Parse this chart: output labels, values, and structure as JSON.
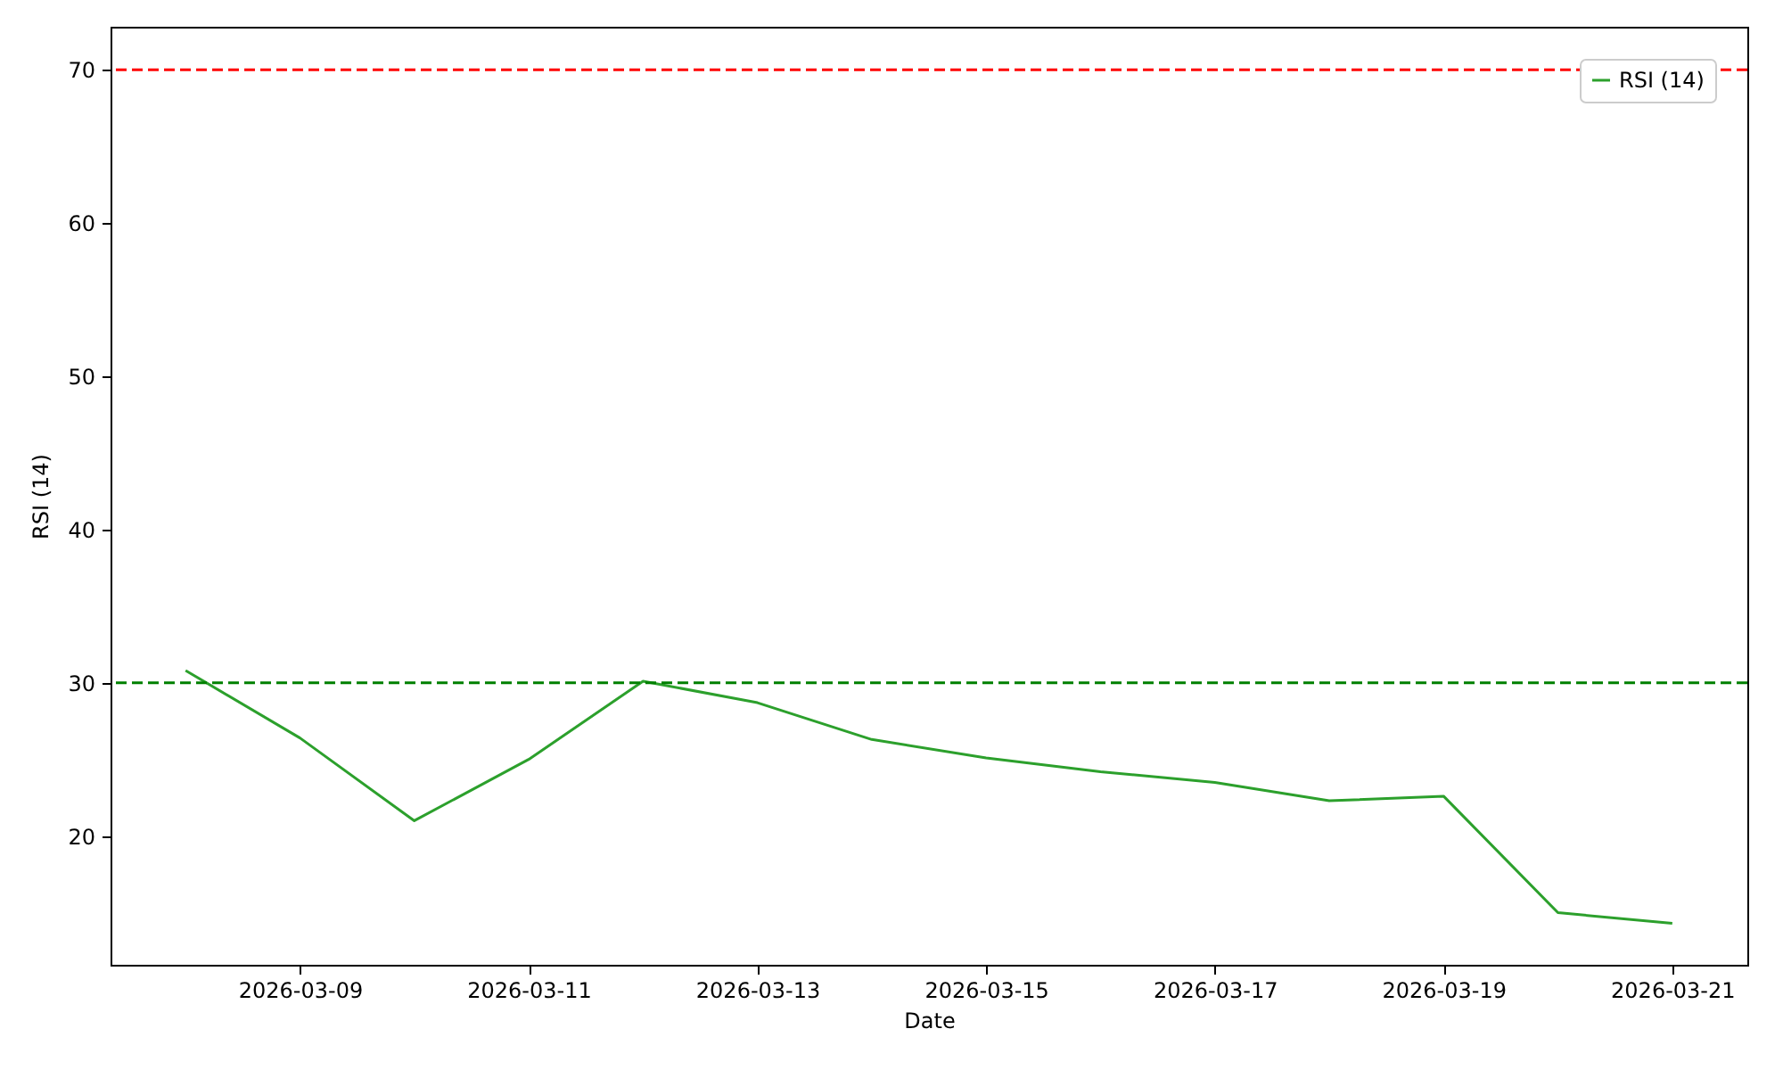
{
  "chart_data": {
    "type": "line",
    "xlabel": "Date",
    "ylabel": "RSI (14)",
    "x": [
      "2026-03-08",
      "2026-03-09",
      "2026-03-10",
      "2026-03-11",
      "2026-03-12",
      "2026-03-13",
      "2026-03-14",
      "2026-03-15",
      "2026-03-16",
      "2026-03-17",
      "2026-03-18",
      "2026-03-19",
      "2026-03-20",
      "2026-03-21"
    ],
    "series": [
      {
        "name": "RSI (14)",
        "color": "#2ca02c",
        "values": [
          30.8,
          26.4,
          21.0,
          25.0,
          30.1,
          28.7,
          26.3,
          25.1,
          24.2,
          23.5,
          22.3,
          22.6,
          15.0,
          14.3
        ]
      }
    ],
    "xlim": [
      "2026-03-07T08:15",
      "2026-03-21T15:45"
    ],
    "xticks": [
      "2026-03-09",
      "2026-03-11",
      "2026-03-13",
      "2026-03-15",
      "2026-03-17",
      "2026-03-19",
      "2026-03-21"
    ],
    "ylim": [
      11.6,
      72.8
    ],
    "yticks": [
      20,
      30,
      40,
      50,
      60,
      70
    ],
    "ref_lines": [
      {
        "axis": "y",
        "value": 70,
        "color": "#ff0000",
        "line_style": "dashed"
      },
      {
        "axis": "y",
        "value": 30,
        "color": "#008000",
        "line_style": "dashed"
      }
    ],
    "legend": "top right",
    "grid": false,
    "line_style": "solid",
    "marker": "none"
  }
}
